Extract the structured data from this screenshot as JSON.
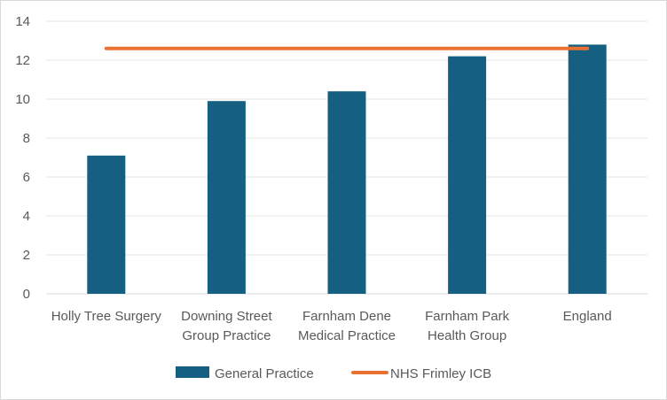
{
  "chart_data": {
    "type": "bar",
    "categories": [
      [
        "Holly Tree Surgery"
      ],
      [
        "Downing Street",
        "Group Practice"
      ],
      [
        "Farnham Dene",
        "Medical Practice"
      ],
      [
        "Farnham Park",
        "Health Group"
      ],
      [
        "England"
      ]
    ],
    "series": [
      {
        "name": "General Practice",
        "type": "bar",
        "color": "#156082",
        "values": [
          7.1,
          9.9,
          10.4,
          12.2,
          12.8
        ]
      },
      {
        "name": "NHS Frimley ICB",
        "type": "line",
        "color": "#e97132",
        "values": [
          12.6,
          12.6,
          12.6,
          12.6,
          12.6
        ]
      }
    ],
    "yticks": [
      "0",
      "2",
      "4",
      "6",
      "8",
      "10",
      "12",
      "14"
    ],
    "ylim": [
      0,
      14
    ],
    "grid": true,
    "legend": "bottom"
  }
}
